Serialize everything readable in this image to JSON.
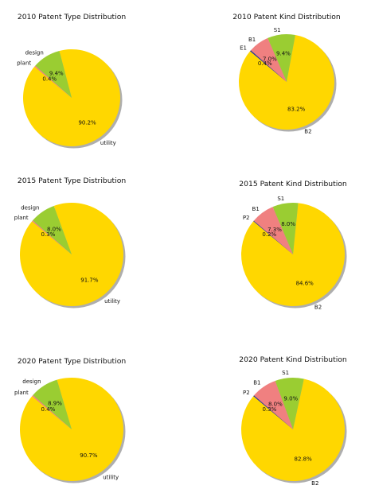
{
  "chart_data": [
    {
      "type": "pie",
      "title": "2010 Patent Type Distribution",
      "labels": [
        "utility",
        "design",
        "plant"
      ],
      "values": [
        90.2,
        9.4,
        0.4
      ],
      "value_labels": [
        "90.2%",
        "9.4%",
        "0.4%"
      ],
      "colors": [
        "#FFD700",
        "#9ACD32",
        "#F08080"
      ],
      "startangle": 140,
      "shadow": true
    },
    {
      "type": "pie",
      "title": "2010 Patent Kind Distribution",
      "labels": [
        "B2",
        "S1",
        "B1",
        "E1"
      ],
      "values": [
        83.2,
        9.4,
        7.0,
        0.4
      ],
      "value_labels": [
        "83.2%",
        "9.4%",
        "7.0%",
        "0.4%"
      ],
      "colors": [
        "#FFD700",
        "#9ACD32",
        "#F08080",
        "#2F3A8F"
      ],
      "startangle": 140,
      "shadow": true
    },
    {
      "type": "pie",
      "title": "2015 Patent Type Distribution",
      "labels": [
        "utility",
        "design",
        "plant"
      ],
      "values": [
        91.7,
        8.0,
        0.3
      ],
      "value_labels": [
        "91.7%",
        "8.0%",
        "0.3%"
      ],
      "colors": [
        "#FFD700",
        "#9ACD32",
        "#F08080"
      ],
      "startangle": 140,
      "shadow": true
    },
    {
      "type": "pie",
      "title": "2015 Patent Kind Distribution",
      "labels": [
        "B2",
        "S1",
        "B1",
        "P2"
      ],
      "values": [
        84.6,
        8.0,
        7.3,
        0.2
      ],
      "value_labels": [
        "84.6%",
        "8.0%",
        "7.3%",
        "0.2%"
      ],
      "colors": [
        "#FFD700",
        "#9ACD32",
        "#F08080",
        "#2F3A8F"
      ],
      "startangle": 140,
      "shadow": true
    },
    {
      "type": "pie",
      "title": "2020 Patent Type Distribution",
      "labels": [
        "utility",
        "design",
        "plant"
      ],
      "values": [
        90.7,
        8.9,
        0.4
      ],
      "value_labels": [
        "90.7%",
        "8.9%",
        "0.4%"
      ],
      "colors": [
        "#FFD700",
        "#9ACD32",
        "#F08080"
      ],
      "startangle": 140,
      "shadow": true
    },
    {
      "type": "pie",
      "title": "2020 Patent Kind Distribution",
      "labels": [
        "B2",
        "S1",
        "B1",
        "P2"
      ],
      "values": [
        82.8,
        9.0,
        8.0,
        0.3
      ],
      "value_labels": [
        "82.8%",
        "9.0%",
        "8.0%",
        "0.3%"
      ],
      "colors": [
        "#FFD700",
        "#9ACD32",
        "#F08080",
        "#2F3A8F"
      ],
      "startangle": 140,
      "shadow": true
    }
  ]
}
